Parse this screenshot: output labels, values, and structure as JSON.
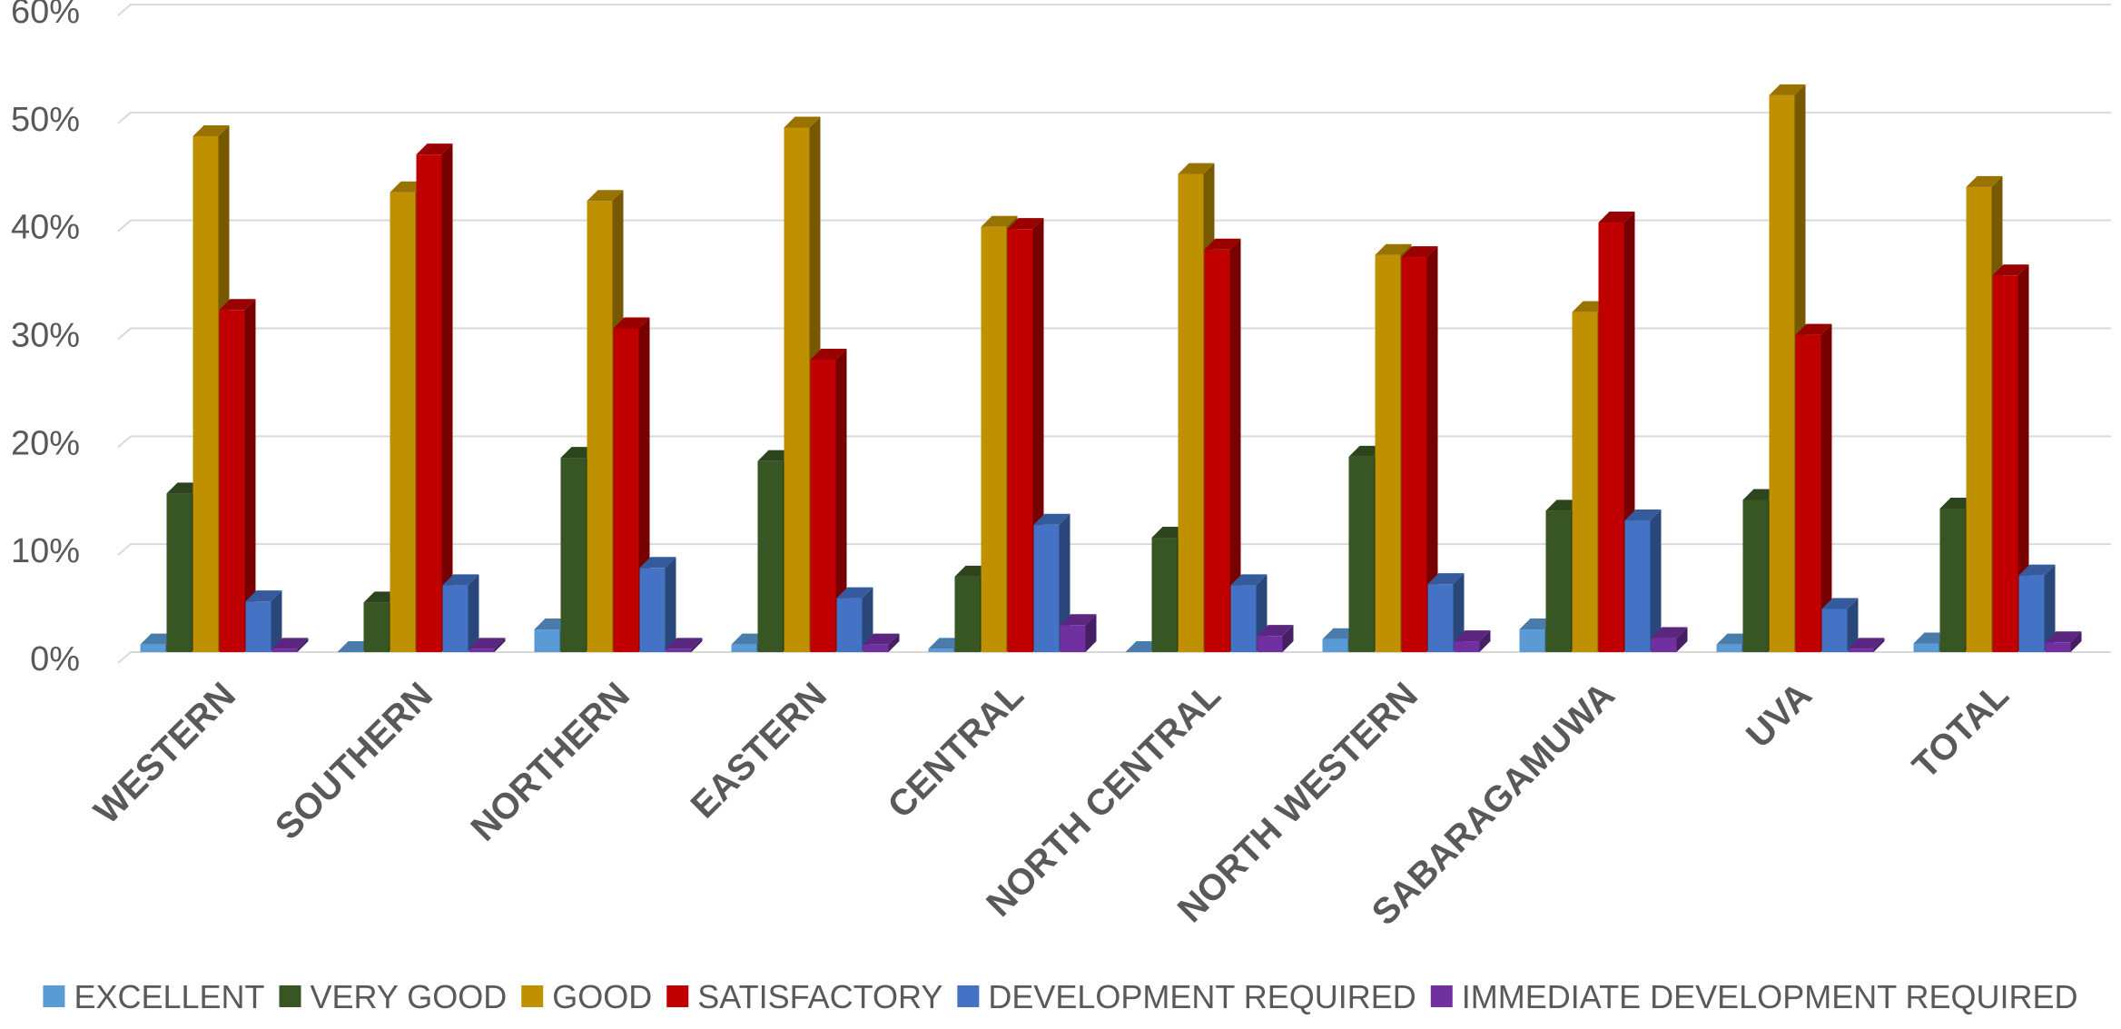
{
  "chart_data": {
    "type": "bar",
    "title": "",
    "xlabel": "",
    "ylabel": "",
    "ylim": [
      0,
      60
    ],
    "y_ticks": [
      "0%",
      "10%",
      "20%",
      "30%",
      "40%",
      "50%",
      "60%"
    ],
    "y_tick_values": [
      0,
      10,
      20,
      30,
      40,
      50,
      60
    ],
    "grid": true,
    "style": "3d-clustered-column",
    "legend_position": "bottom",
    "categories": [
      "WESTERN",
      "SOUTHERN",
      "NORTHERN",
      "EASTERN",
      "CENTRAL",
      "NORTH CENTRAL",
      "NORTH WESTERN",
      "SABARAGAMUWA",
      "UVA",
      "TOTAL"
    ],
    "series": [
      {
        "name": "EXCELLENT",
        "color": "#5B9BD5",
        "values": [
          0.7,
          0.0,
          2.1,
          0.7,
          0.3,
          0.0,
          1.2,
          2.1,
          0.7,
          0.8
        ]
      },
      {
        "name": "VERY GOOD",
        "color": "#375623",
        "values": [
          14.7,
          4.6,
          18.0,
          17.7,
          7.0,
          10.6,
          18.1,
          13.1,
          14.1,
          13.3
        ]
      },
      {
        "name": "GOOD",
        "color": "#BF9000",
        "values": [
          47.8,
          42.6,
          41.8,
          48.6,
          39.4,
          44.3,
          36.8,
          31.5,
          51.6,
          43.1
        ]
      },
      {
        "name": "SATISFACTORY",
        "color": "#C00000",
        "values": [
          31.7,
          46.1,
          30.0,
          27.1,
          39.2,
          37.3,
          36.6,
          39.8,
          29.4,
          34.9
        ]
      },
      {
        "name": "DEVELOPMENT REQUIRED",
        "color": "#4472C4",
        "values": [
          4.7,
          6.2,
          7.8,
          5.0,
          11.8,
          6.2,
          6.3,
          12.2,
          4.0,
          7.1
        ]
      },
      {
        "name": "IMMEDIATE DEVELOPMENT REQUIRED",
        "color": "#7030A0",
        "values": [
          0.3,
          0.3,
          0.3,
          0.7,
          2.5,
          1.5,
          1.0,
          1.3,
          0.3,
          0.9
        ]
      }
    ]
  }
}
